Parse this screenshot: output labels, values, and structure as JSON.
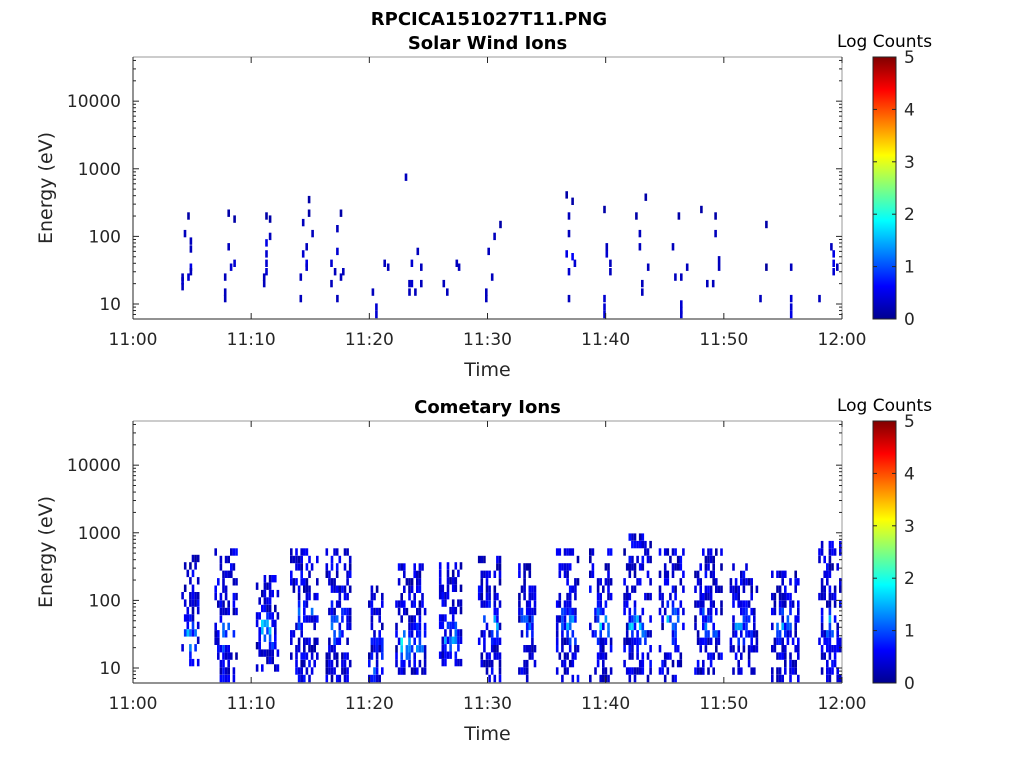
{
  "figure": {
    "title": "RPCICA151027T11.PNG"
  },
  "chart_data": [
    {
      "type": "heatmap",
      "title": "Solar Wind Ions",
      "xlabel": "Time",
      "ylabel": "Energy (eV)",
      "x_ticks": [
        "11:00",
        "11:10",
        "11:20",
        "11:30",
        "11:40",
        "11:50",
        "12:00"
      ],
      "y_ticks": [
        "10",
        "100",
        "1000",
        "10000"
      ],
      "y_scale": "log",
      "ylim": [
        6,
        45000
      ],
      "xlim_minutes": [
        0,
        60
      ],
      "colorbar": {
        "label": "Log Counts",
        "ticks": [
          "0",
          "1",
          "2",
          "3",
          "4",
          "5"
        ],
        "range": [
          0,
          5
        ]
      },
      "cells": [
        [
          4.2,
          18,
          0.3
        ],
        [
          4.2,
          22,
          0.4
        ],
        [
          4.2,
          25,
          0.3
        ],
        [
          4.4,
          110,
          0.3
        ],
        [
          4.7,
          200,
          0.2
        ],
        [
          4.7,
          25,
          0.4
        ],
        [
          4.9,
          35,
          0.5
        ],
        [
          4.9,
          30,
          0.3
        ],
        [
          4.9,
          65,
          0.3
        ],
        [
          4.9,
          85,
          0.3
        ],
        [
          7.8,
          12,
          0.3
        ],
        [
          7.8,
          15,
          0.3
        ],
        [
          7.8,
          25,
          0.3
        ],
        [
          8.1,
          220,
          0.2
        ],
        [
          8.1,
          70,
          0.3
        ],
        [
          8.3,
          35,
          0.4
        ],
        [
          8.6,
          40,
          0.4
        ],
        [
          8.6,
          180,
          0.2
        ],
        [
          11.1,
          20,
          0.3
        ],
        [
          11.1,
          25,
          0.3
        ],
        [
          11.3,
          30,
          0.4
        ],
        [
          11.3,
          40,
          0.4
        ],
        [
          11.3,
          55,
          0.4
        ],
        [
          11.3,
          80,
          0.5
        ],
        [
          11.3,
          200,
          0.2
        ],
        [
          11.6,
          100,
          0.3
        ],
        [
          11.6,
          180,
          0.2
        ],
        [
          14.2,
          12,
          0.3
        ],
        [
          14.2,
          25,
          0.3
        ],
        [
          14.4,
          160,
          0.3
        ],
        [
          14.4,
          55,
          0.4
        ],
        [
          14.7,
          40,
          0.5
        ],
        [
          14.7,
          35,
          0.4
        ],
        [
          14.7,
          70,
          0.3
        ],
        [
          14.9,
          350,
          0.2
        ],
        [
          14.9,
          220,
          0.2
        ],
        [
          15.2,
          110,
          0.3
        ],
        [
          16.8,
          20,
          0.3
        ],
        [
          16.8,
          40,
          0.4
        ],
        [
          17.1,
          30,
          0.3
        ],
        [
          17.3,
          60,
          0.4
        ],
        [
          17.3,
          130,
          0.3
        ],
        [
          17.6,
          220,
          0.2
        ],
        [
          17.6,
          25,
          0.3
        ],
        [
          17.8,
          30,
          0.3
        ],
        [
          17.3,
          12,
          0.3
        ],
        [
          20.3,
          15,
          0.3
        ],
        [
          20.6,
          9,
          0.4
        ],
        [
          20.6,
          7,
          0.4
        ],
        [
          21.3,
          40,
          0.3
        ],
        [
          21.6,
          35,
          0.3
        ],
        [
          23.1,
          750,
          0.3
        ],
        [
          23.4,
          20,
          0.3
        ],
        [
          23.4,
          15,
          0.3
        ],
        [
          23.6,
          40,
          0.4
        ],
        [
          23.6,
          20,
          0.4
        ],
        [
          23.9,
          15,
          0.3
        ],
        [
          24.1,
          60,
          0.3
        ],
        [
          24.4,
          35,
          0.3
        ],
        [
          24.4,
          20,
          0.3
        ],
        [
          26.3,
          20,
          0.3
        ],
        [
          26.6,
          15,
          0.3
        ],
        [
          27.4,
          40,
          0.3
        ],
        [
          27.6,
          35,
          0.3
        ],
        [
          29.9,
          15,
          0.3
        ],
        [
          29.9,
          12,
          0.3
        ],
        [
          30.1,
          60,
          0.3
        ],
        [
          30.4,
          25,
          0.3
        ],
        [
          30.6,
          100,
          0.3
        ],
        [
          31.1,
          150,
          0.2
        ],
        [
          36.7,
          410,
          0.2
        ],
        [
          36.7,
          55,
          0.5
        ],
        [
          36.9,
          30,
          0.4
        ],
        [
          36.9,
          110,
          0.3
        ],
        [
          36.9,
          200,
          0.3
        ],
        [
          37.2,
          50,
          0.6
        ],
        [
          37.2,
          330,
          0.2
        ],
        [
          37.4,
          40,
          0.4
        ],
        [
          36.9,
          12,
          0.3
        ],
        [
          39.9,
          250,
          0.2
        ],
        [
          39.9,
          12,
          0.4
        ],
        [
          39.9,
          9,
          0.4
        ],
        [
          39.9,
          7,
          0.4
        ],
        [
          40.1,
          55,
          0.4
        ],
        [
          40.1,
          70,
          0.3
        ],
        [
          40.4,
          40,
          0.3
        ],
        [
          40.4,
          30,
          0.3
        ],
        [
          42.6,
          200,
          0.2
        ],
        [
          42.9,
          110,
          0.3
        ],
        [
          42.9,
          70,
          0.3
        ],
        [
          43.1,
          15,
          0.3
        ],
        [
          43.1,
          20,
          0.3
        ],
        [
          43.4,
          380,
          0.2
        ],
        [
          43.6,
          35,
          0.3
        ],
        [
          45.7,
          70,
          0.3
        ],
        [
          45.9,
          25,
          0.3
        ],
        [
          46.2,
          200,
          0.2
        ],
        [
          46.4,
          25,
          0.3
        ],
        [
          46.4,
          10,
          0.4
        ],
        [
          46.4,
          8,
          0.4
        ],
        [
          46.4,
          7,
          0.4
        ],
        [
          46.9,
          35,
          0.3
        ],
        [
          48.1,
          250,
          0.2
        ],
        [
          48.6,
          20,
          0.3
        ],
        [
          49.1,
          20,
          0.3
        ],
        [
          49.3,
          200,
          0.2
        ],
        [
          49.3,
          110,
          0.3
        ],
        [
          49.6,
          45,
          0.3
        ],
        [
          49.6,
          35,
          0.3
        ],
        [
          53.1,
          12,
          0.3
        ],
        [
          53.6,
          150,
          0.2
        ],
        [
          53.6,
          35,
          0.15
        ],
        [
          55.7,
          12,
          0.4
        ],
        [
          55.7,
          9,
          0.4
        ],
        [
          55.7,
          7,
          0.5
        ],
        [
          55.7,
          35,
          0.3
        ],
        [
          58.1,
          12,
          0.3
        ],
        [
          59.1,
          70,
          0.3
        ],
        [
          59.3,
          40,
          0.5
        ],
        [
          59.3,
          55,
          0.5
        ],
        [
          59.6,
          35,
          0.3
        ],
        [
          59.3,
          30,
          0.4
        ]
      ]
    },
    {
      "type": "heatmap",
      "title": "Cometary Ions",
      "xlabel": "Time",
      "ylabel": "Energy (eV)",
      "x_ticks": [
        "11:00",
        "11:10",
        "11:20",
        "11:30",
        "11:40",
        "11:50",
        "12:00"
      ],
      "y_ticks": [
        "10",
        "100",
        "1000",
        "10000"
      ],
      "y_scale": "log",
      "ylim": [
        6,
        45000
      ],
      "xlim_minutes": [
        0,
        60
      ],
      "colorbar": {
        "label": "Log Counts",
        "ticks": [
          "0",
          "1",
          "2",
          "3",
          "4",
          "5"
        ],
        "range": [
          0,
          5
        ]
      },
      "bursts": [
        {
          "t0": 4.2,
          "t1": 5.6,
          "emin": 12,
          "emax": 480,
          "core": 28,
          "peak": 1.8,
          "seed": 1
        },
        {
          "t0": 7.0,
          "t1": 8.9,
          "emin": 7,
          "emax": 550,
          "core": 32,
          "peak": 1.6,
          "seed": 2
        },
        {
          "t0": 10.5,
          "t1": 12.3,
          "emin": 10,
          "emax": 260,
          "core": 40,
          "peak": 1.9,
          "seed": 3
        },
        {
          "t0": 13.4,
          "t1": 15.7,
          "emin": 7,
          "emax": 550,
          "core": 45,
          "peak": 1.7,
          "seed": 4
        },
        {
          "t0": 16.4,
          "t1": 18.4,
          "emin": 7,
          "emax": 550,
          "core": 42,
          "peak": 1.6,
          "seed": 5
        },
        {
          "t0": 20.0,
          "t1": 21.3,
          "emin": 7,
          "emax": 160,
          "core": 14,
          "peak": 1.5,
          "seed": 6
        },
        {
          "t0": 22.3,
          "t1": 24.9,
          "emin": 9,
          "emax": 320,
          "core": 22,
          "peak": 2.0,
          "seed": 7
        },
        {
          "t0": 26.0,
          "t1": 27.9,
          "emin": 12,
          "emax": 360,
          "core": 28,
          "peak": 1.6,
          "seed": 8
        },
        {
          "t0": 29.3,
          "t1": 31.2,
          "emin": 7,
          "emax": 480,
          "core": 45,
          "peak": 1.7,
          "seed": 9
        },
        {
          "t0": 32.7,
          "t1": 34.2,
          "emin": 7,
          "emax": 320,
          "core": 45,
          "peak": 1.4,
          "seed": 10
        },
        {
          "t0": 35.9,
          "t1": 37.8,
          "emin": 7,
          "emax": 650,
          "core": 45,
          "peak": 1.9,
          "seed": 11
        },
        {
          "t0": 38.7,
          "t1": 40.6,
          "emin": 7,
          "emax": 570,
          "core": 45,
          "peak": 1.7,
          "seed": 12
        },
        {
          "t0": 41.6,
          "t1": 43.8,
          "emin": 7,
          "emax": 900,
          "core": 45,
          "peak": 1.9,
          "seed": 13
        },
        {
          "t0": 44.6,
          "t1": 46.6,
          "emin": 7,
          "emax": 620,
          "core": 45,
          "peak": 1.6,
          "seed": 14
        },
        {
          "t0": 47.6,
          "t1": 49.8,
          "emin": 9,
          "emax": 520,
          "core": 45,
          "peak": 1.6,
          "seed": 15
        },
        {
          "t0": 50.6,
          "t1": 52.9,
          "emin": 9,
          "emax": 320,
          "core": 40,
          "peak": 1.4,
          "seed": 16
        },
        {
          "t0": 54.1,
          "t1": 56.3,
          "emin": 7,
          "emax": 260,
          "core": 45,
          "peak": 1.5,
          "seed": 17
        },
        {
          "t0": 58.1,
          "t1": 59.9,
          "emin": 7,
          "emax": 700,
          "core": 40,
          "peak": 1.9,
          "seed": 18
        }
      ]
    }
  ]
}
